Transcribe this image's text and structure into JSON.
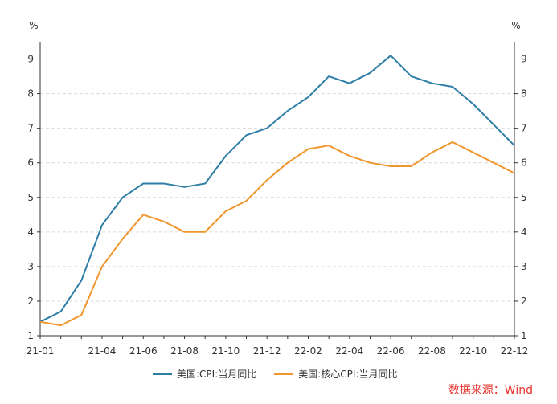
{
  "chart_data": {
    "type": "line",
    "title": "",
    "ylabel_left": "%",
    "ylabel_right": "%",
    "ylim": [
      1,
      9.5
    ],
    "yticks": [
      1,
      2,
      3,
      4,
      5,
      6,
      7,
      8,
      9
    ],
    "x": [
      "21-01",
      "21-02",
      "21-03",
      "21-04",
      "21-05",
      "21-06",
      "21-07",
      "21-08",
      "21-09",
      "21-10",
      "21-11",
      "21-12",
      "22-01",
      "22-02",
      "22-03",
      "22-04",
      "22-05",
      "22-06",
      "22-07",
      "22-08",
      "22-09",
      "22-10",
      "22-11",
      "22-12"
    ],
    "xtick_labels": [
      "21-01",
      "21-04",
      "21-06",
      "21-08",
      "21-10",
      "21-12",
      "22-02",
      "22-04",
      "22-06",
      "22-08",
      "22-10",
      "22-12"
    ],
    "series": [
      {
        "name": "美国:CPI:当月同比",
        "color": "#2e7ea6",
        "values": [
          1.4,
          1.7,
          2.6,
          4.2,
          5.0,
          5.4,
          5.4,
          5.3,
          5.4,
          6.2,
          6.8,
          7.0,
          7.5,
          7.9,
          8.5,
          8.3,
          8.6,
          9.1,
          8.5,
          8.3,
          8.2,
          7.7,
          7.1,
          6.5
        ]
      },
      {
        "name": "美国:核心CPI:当月同比",
        "color": "#f0962e",
        "values": [
          1.4,
          1.3,
          1.6,
          3.0,
          3.8,
          4.5,
          4.3,
          4.0,
          4.0,
          4.6,
          4.9,
          5.5,
          6.0,
          6.4,
          6.5,
          6.2,
          6.0,
          5.9,
          5.9,
          6.3,
          6.6,
          6.3,
          6.0,
          5.7
        ]
      }
    ]
  },
  "source": "数据来源：Wind"
}
